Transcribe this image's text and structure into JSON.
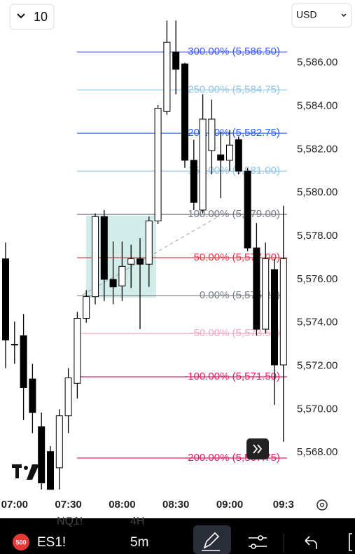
{
  "chart_data": {
    "type": "candlestick",
    "categories": [
      null,
      "07:00",
      null,
      null,
      null,
      null,
      null,
      "07:30",
      null,
      null,
      null,
      null,
      null,
      "08:00",
      null,
      null,
      null,
      null,
      null,
      "08:30",
      null,
      null,
      null,
      null,
      null,
      "09:00",
      null,
      null,
      null,
      null,
      null,
      "09:3"
    ],
    "open": [
      5576.95,
      5573.0,
      5573.4,
      5571.4,
      5569.2,
      5568.05,
      5567.3,
      5569.7,
      5571.2,
      5574.2,
      5575.2,
      5578.9,
      5576.0,
      5575.7,
      5576.7,
      5576.95,
      5576.7,
      5578.7,
      5583.75,
      5586.5,
      5585.95,
      5581.5,
      5579.2,
      5581.95,
      5581.75,
      5581.5,
      5582.45,
      5581.0,
      5577.45,
      5573.7,
      5576.45,
      5572.05
    ],
    "high": [
      5577.7,
      5574.05,
      5574.4,
      5572.1,
      5569.85,
      5568.3,
      5570.0,
      5571.9,
      5574.5,
      5575.5,
      5579.05,
      5579.2,
      5577.75,
      5577.75,
      5577.6,
      5577.9,
      5578.9,
      5584.05,
      5587.95,
      5587.95,
      5586.0,
      5582.45,
      5584.55,
      5584.3,
      5582.8,
      5582.9,
      5582.6,
      5581.15,
      5578.6,
      5577.7,
      5576.95,
      5579.4
    ],
    "low": [
      5571.9,
      5572.1,
      5569.5,
      5568.9,
      5566.3,
      5566.3,
      5566.3,
      5568.9,
      5570.5,
      5574.0,
      5574.85,
      5575.0,
      5574.85,
      5575.0,
      5575.6,
      5573.7,
      5575.65,
      5578.55,
      5583.6,
      5584.55,
      5581.15,
      5579.2,
      5579.05,
      5580.85,
      5579.75,
      5581.0,
      5580.85,
      5577.3,
      5573.4,
      5573.5,
      5570.2,
      5568.5
    ],
    "close": [
      5573.2,
      5573.0,
      5571.0,
      5569.85,
      5566.6,
      5566.3,
      5569.7,
      5571.45,
      5574.2,
      5575.2,
      5578.9,
      5576.0,
      5575.65,
      5576.6,
      5576.95,
      5576.7,
      5578.7,
      5583.9,
      5586.95,
      5585.7,
      5581.5,
      5579.55,
      5583.4,
      5583.4,
      5581.5,
      5582.2,
      5581.0,
      5577.45,
      5573.7,
      5576.95,
      5572.05,
      5576.95
    ],
    "up_color": "#ffffff",
    "down_color": "#000000",
    "ylim": [
      5566.1,
      5588.9
    ],
    "yticks": [
      {
        "value": 5568,
        "label": "5,568.00"
      },
      {
        "value": 5570,
        "label": "5,570.00"
      },
      {
        "value": 5572,
        "label": "5,572.00"
      },
      {
        "value": 5574,
        "label": "5,574.00"
      },
      {
        "value": 5576,
        "label": "5,576.00"
      },
      {
        "value": 5578,
        "label": "5,578.00"
      },
      {
        "value": 5580,
        "label": "5,580.00"
      },
      {
        "value": 5582,
        "label": "5,582.00"
      },
      {
        "value": 5584,
        "label": "5,584.00"
      },
      {
        "value": 5586,
        "label": "5,586.00"
      }
    ],
    "fib_levels": [
      {
        "label": "300.00% (5,586.50)",
        "value": 5586.5,
        "color": "#3d5afe"
      },
      {
        "label": "250.00% (5,584.75)",
        "value": 5584.75,
        "color": "#90c4e8"
      },
      {
        "label": "200.00% (5,582.75)",
        "value": 5582.75,
        "color": "#2962ff"
      },
      {
        "label": "150.00% (5,581.00)",
        "value": 5581.0,
        "color": "#90c4e8"
      },
      {
        "label": "100.00% (5,579.00)",
        "value": 5579.0,
        "color": "#787b86"
      },
      {
        "label": "50.00% (5,577.00)",
        "value": 5577.0,
        "color": "#f23645"
      },
      {
        "label": "0.00% (5,575.25)",
        "value": 5575.25,
        "color": "#787b86"
      },
      {
        "label": "-50.00% (5,573.50)",
        "value": 5573.5,
        "color": "#f4a7c0"
      },
      {
        "label": "-100.00% (5,571.50)",
        "value": 5571.5,
        "color": "#e91e63"
      },
      {
        "label": "-200.00% (5,567.75)",
        "value": 5567.75,
        "color": "#e91e63"
      }
    ]
  },
  "ui": {
    "interval": "10",
    "currency": "USD",
    "symbol_badge": "500",
    "symbol": "ES1!",
    "timeframe": "5m",
    "ghost_symbol": "NQ1!",
    "ghost_timeframe": "4H"
  }
}
